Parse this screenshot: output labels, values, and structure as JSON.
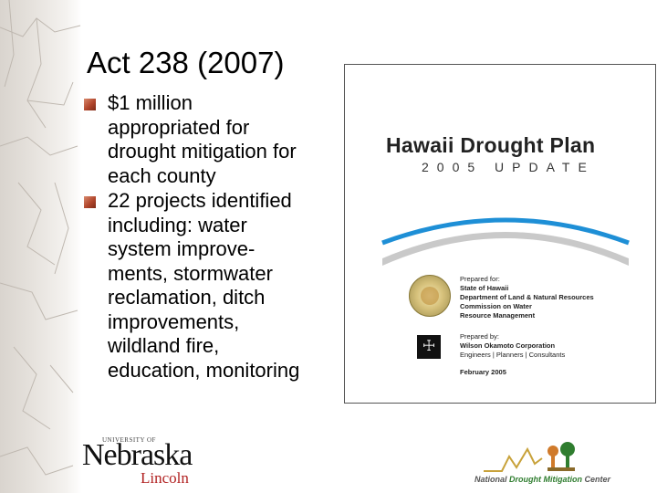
{
  "slide": {
    "title": "Act 238 (2007)",
    "bullets": [
      {
        "lines": [
          "$1 million",
          "appropriated for",
          "drought mitigation for",
          "each county"
        ]
      },
      {
        "lines": [
          "22 projects identified",
          "including: water",
          "system improve-",
          "ments, stormwater",
          "reclamation, ditch",
          "improvements,",
          "wildland fire,",
          "education, monitoring"
        ]
      }
    ]
  },
  "cover": {
    "title": "Hawaii Drought Plan",
    "subtitle": "2005 UPDATE",
    "prepared_for_label": "Prepared for:",
    "prepared_for_lines": [
      "State of Hawaii",
      "Department of Land & Natural Resources",
      "Commission on Water",
      "Resource Management"
    ],
    "prepared_by_label": "Prepared by:",
    "prepared_by_name": "Wilson Okamoto Corporation",
    "prepared_by_tagline": "Engineers | Planners | Consultants",
    "date": "February 2005",
    "colors": {
      "arc_blue": "#1e8fd6",
      "arc_gray": "#c9c9c9"
    }
  },
  "logos": {
    "unl_small": "UNIVERSITY OF",
    "unl_big": "Nebraska",
    "unl_lincoln": "Lincoln",
    "ndmc_part1": "National",
    "ndmc_part2": "Drought Mitigation",
    "ndmc_part3": "Center"
  },
  "colors": {
    "bullet": "#b1462c",
    "unl_red": "#b22222",
    "ndmc_green": "#2f7d2f"
  }
}
